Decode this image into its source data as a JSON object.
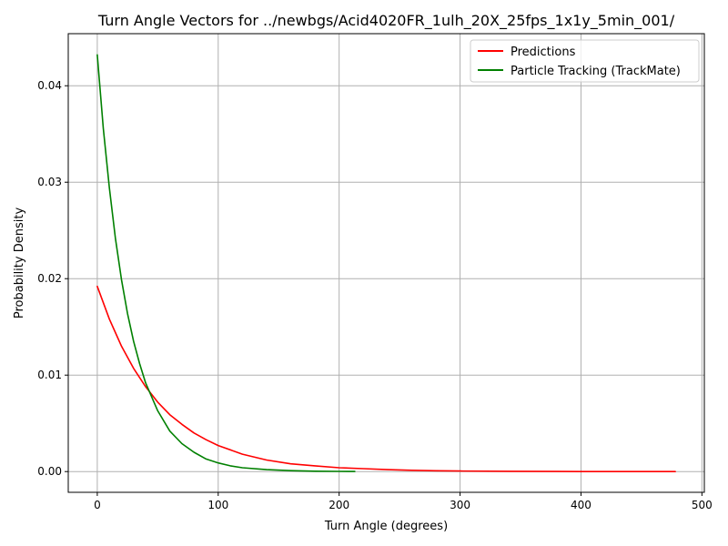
{
  "chart_data": {
    "type": "line",
    "title": "Turn Angle Vectors for ../newbgs/Acid4020FR_1ulh_20X_25fps_1x1y_5min_001/",
    "xlabel": "Turn Angle (degrees)",
    "ylabel": "Probability Density",
    "xlim": [
      -24,
      502
    ],
    "ylim": [
      -0.00215,
      0.0454
    ],
    "xticks": [
      0,
      100,
      200,
      300,
      400,
      500
    ],
    "xtick_labels": [
      "0",
      "100",
      "200",
      "300",
      "400",
      "500"
    ],
    "yticks": [
      0.0,
      0.01,
      0.02,
      0.03,
      0.04
    ],
    "ytick_labels": [
      "0.00",
      "0.01",
      "0.02",
      "0.03",
      "0.04"
    ],
    "grid": true,
    "legend": {
      "placement": "top-right"
    },
    "series": [
      {
        "name": "Predictions",
        "color": "#ff0000",
        "x": [
          0,
          10,
          20,
          30,
          40,
          50,
          60,
          70,
          80,
          90,
          100,
          120,
          140,
          160,
          180,
          200,
          220,
          240,
          260,
          280,
          300,
          340,
          380,
          420,
          460,
          478
        ],
        "y": [
          0.0192,
          0.0158,
          0.013,
          0.0107,
          0.0088,
          0.0072,
          0.0059,
          0.0049,
          0.004,
          0.0033,
          0.0027,
          0.0018,
          0.0012,
          0.0008,
          0.0006,
          0.0004,
          0.0003,
          0.0002,
          0.00013,
          9e-05,
          6e-05,
          3e-05,
          1e-05,
          5e-06,
          2e-06,
          1e-06
        ]
      },
      {
        "name": "Particle Tracking (TrackMate)",
        "color": "#008000",
        "x": [
          0,
          5,
          10,
          15,
          20,
          25,
          30,
          35,
          40,
          50,
          60,
          70,
          80,
          90,
          100,
          110,
          120,
          140,
          160,
          180,
          200,
          213
        ],
        "y": [
          0.0432,
          0.0356,
          0.0294,
          0.0242,
          0.0199,
          0.0164,
          0.0135,
          0.0112,
          0.0092,
          0.0063,
          0.0042,
          0.0029,
          0.002,
          0.0013,
          0.0009,
          0.0006,
          0.0004,
          0.0002,
          0.0001,
          4e-05,
          2e-05,
          1e-05
        ]
      }
    ]
  }
}
